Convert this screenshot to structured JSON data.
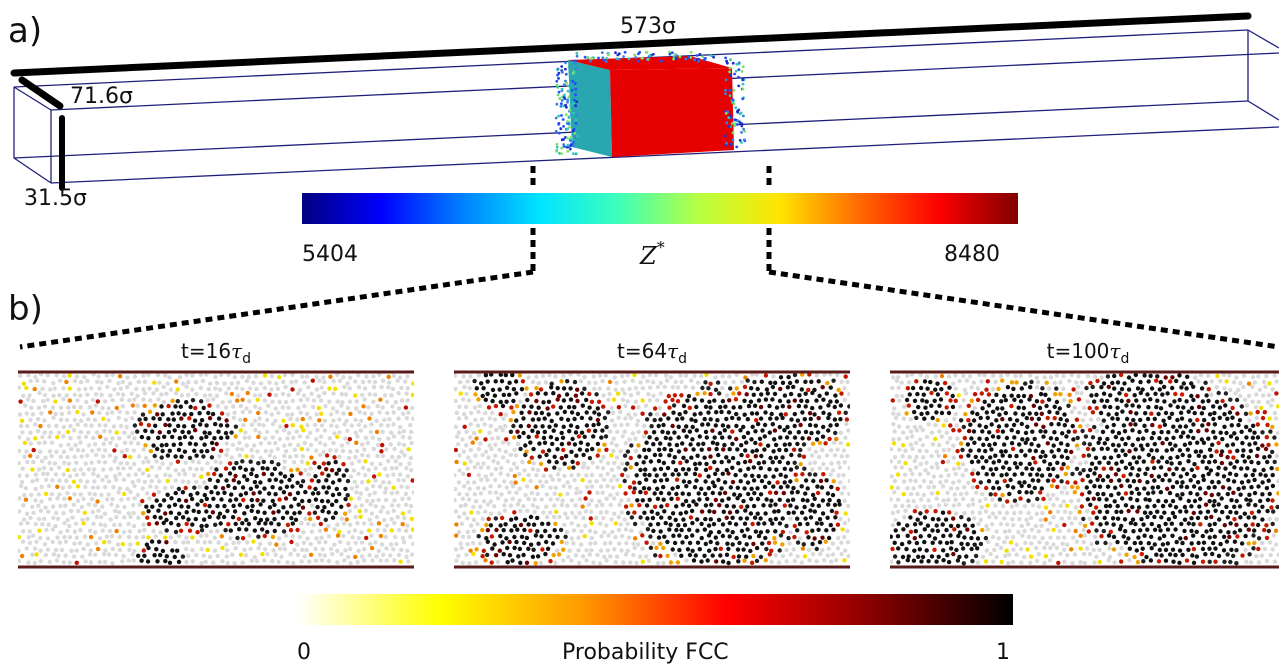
{
  "panel_a": {
    "label": "a)",
    "length_label": "573σ",
    "width_label": "71.6σ",
    "height_label": "31.5σ",
    "colorbar": {
      "min_label": "5404",
      "max_label": "8480",
      "symbol": "Z",
      "symbol_sup": "*",
      "colors": [
        "#00007f",
        "#0000ff",
        "#007fff",
        "#00e5ff",
        "#40ffb8",
        "#b8ff40",
        "#ffe500",
        "#ff6a00",
        "#ff0000",
        "#7f0000"
      ]
    },
    "box_color": "#1f1f7a",
    "crystal_color": "#e60000"
  },
  "panel_b": {
    "label": "b)",
    "snapshots": [
      {
        "prefix": "t=",
        "value": "16",
        "unit": "τ",
        "unit_sub": "d"
      },
      {
        "prefix": "t=",
        "value": "64",
        "unit": "τ",
        "unit_sub": "d"
      },
      {
        "prefix": "t=",
        "value": "100",
        "unit": "τ",
        "unit_sub": "d"
      }
    ],
    "colorbar": {
      "title": "Probability FCC",
      "min_label": "0",
      "max_label": "1",
      "colors": [
        "#ffffff",
        "#ffff00",
        "#ff9900",
        "#ff0000",
        "#8b0000",
        "#000000"
      ]
    }
  }
}
